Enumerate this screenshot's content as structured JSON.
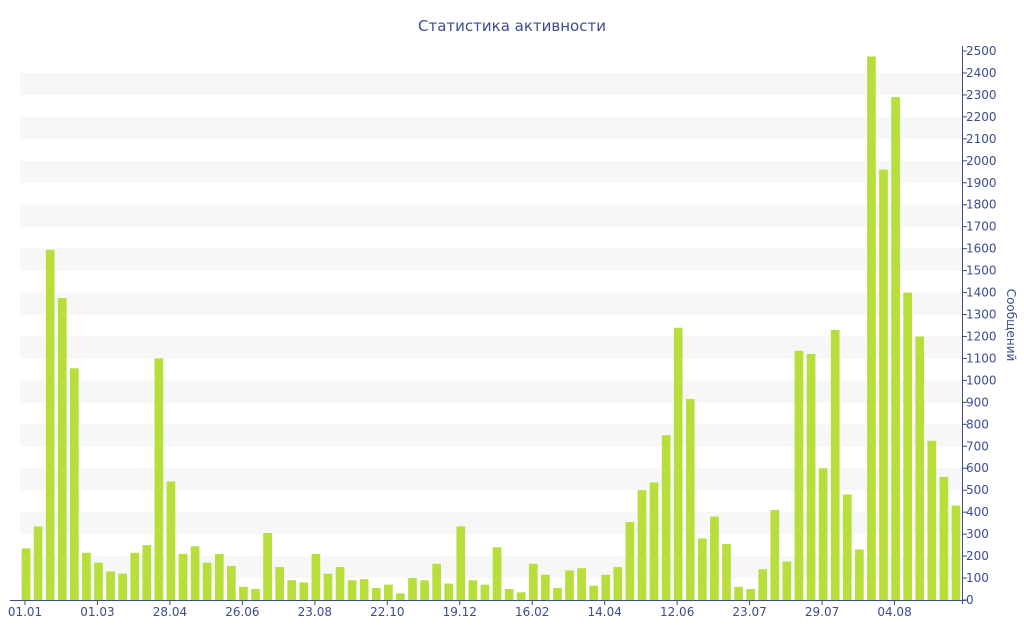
{
  "chart_data": {
    "type": "bar",
    "title": "Статистика активности",
    "xlabel": "",
    "ylabel": "Сообщений",
    "ylim": [
      0,
      2500
    ],
    "y_ticks": [
      0,
      100,
      200,
      300,
      400,
      500,
      600,
      700,
      800,
      900,
      1000,
      1100,
      1200,
      1300,
      1400,
      1500,
      1600,
      1700,
      1800,
      1900,
      2000,
      2100,
      2200,
      2300,
      2400,
      2500
    ],
    "x_tick_labels": [
      {
        "label": "01.01",
        "index": 0
      },
      {
        "label": "01.03",
        "index": 6
      },
      {
        "label": "28.04",
        "index": 12
      },
      {
        "label": "26.06",
        "index": 18
      },
      {
        "label": "23.08",
        "index": 24
      },
      {
        "label": "22.10",
        "index": 30
      },
      {
        "label": "19.12",
        "index": 36
      },
      {
        "label": "16.02",
        "index": 42
      },
      {
        "label": "14.04",
        "index": 48
      },
      {
        "label": "12.06",
        "index": 54
      },
      {
        "label": "23.07",
        "index": 60
      },
      {
        "label": "29.07",
        "index": 66
      },
      {
        "label": "04.08",
        "index": 72
      }
    ],
    "values": [
      235,
      335,
      1595,
      1375,
      1055,
      215,
      170,
      130,
      120,
      215,
      250,
      1100,
      540,
      210,
      245,
      170,
      210,
      155,
      60,
      50,
      305,
      150,
      90,
      80,
      210,
      120,
      150,
      90,
      95,
      55,
      70,
      30,
      100,
      90,
      165,
      75,
      335,
      90,
      70,
      240,
      50,
      35,
      165,
      115,
      55,
      135,
      145,
      65,
      115,
      150,
      355,
      500,
      535,
      750,
      1240,
      915,
      280,
      380,
      255,
      60,
      50,
      140,
      410,
      175,
      1135,
      1120,
      600,
      1230,
      480,
      230,
      2475,
      1960,
      2290,
      1400,
      1200,
      725,
      560,
      430
    ],
    "grid": "alternating horizontal bands",
    "y_axis_side": "right",
    "colors": {
      "bar": "#b7de3a",
      "text": "#3d4c8c",
      "axis": "#3d4c8c",
      "band": "#f7f7f7"
    }
  }
}
